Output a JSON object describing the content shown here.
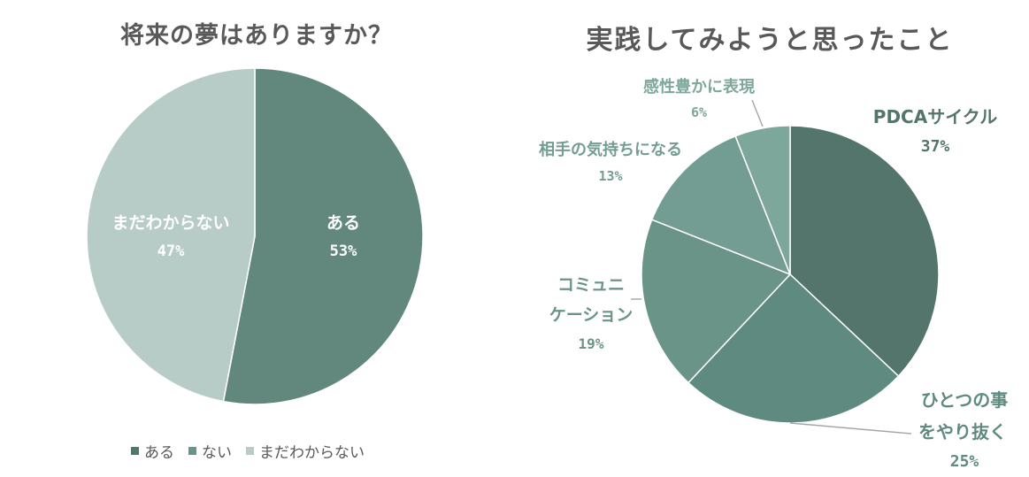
{
  "colors": {
    "c1_aru": "#62887e",
    "c1_nai": "#b8ccc7",
    "c2_pdca": "#53756b",
    "c2_hitotsu": "#5f8a7f",
    "c2_comm": "#6b9489",
    "c2_aite": "#739d93",
    "c2_kansei": "#7ea79c",
    "leader": "#a6a6a6"
  },
  "chart_data": [
    {
      "type": "pie",
      "title": "将来の夢はありますか？",
      "slices": [
        {
          "label": "ある",
          "value": 53,
          "pct": "53%"
        },
        {
          "label": "まだわからない",
          "value": 47,
          "pct": "47%"
        }
      ],
      "legend": {
        "position": "bottom",
        "entries": [
          {
            "label": "ある",
            "color": "#53756b"
          },
          {
            "label": "ない",
            "color": "#6b9489"
          },
          {
            "label": "まだわからない",
            "color": "#b8ccc7"
          }
        ]
      }
    },
    {
      "type": "pie",
      "title": "実践してみようと思ったこと",
      "slices": [
        {
          "label": "PDCAサイクル",
          "lines": [
            "PDCAサイクル"
          ],
          "value": 37,
          "pct": "37%"
        },
        {
          "label": "ひとつの事をやり抜く",
          "lines": [
            "ひとつの事",
            "をやり抜く"
          ],
          "value": 25,
          "pct": "25%"
        },
        {
          "label": "コミュニケーション",
          "lines": [
            "コミュニ",
            "ケーション"
          ],
          "value": 19,
          "pct": "19%"
        },
        {
          "label": "相手の気持ちになる",
          "lines": [
            "相手の気持ちになる"
          ],
          "value": 13,
          "pct": "13%"
        },
        {
          "label": "感性豊かに表現",
          "lines": [
            "感性豊かに表現"
          ],
          "value": 6,
          "pct": "6%"
        }
      ]
    }
  ]
}
